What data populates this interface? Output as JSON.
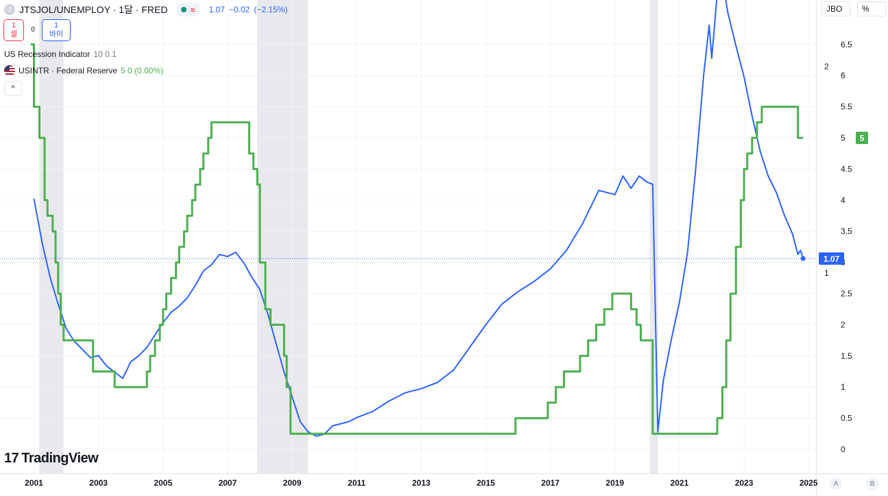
{
  "header": {
    "symbol_logo": "J",
    "title": "JTSJOL/UNEMPLOY · 1달 · FRED",
    "approx_symbol": "≈",
    "price": "1.07",
    "change": "−0.02",
    "change_pct": "(−2.15%)"
  },
  "trade": {
    "sell_price": "1",
    "sell_label": "셀",
    "spread": "0",
    "buy_price": "1",
    "buy_label": "바이"
  },
  "legend": {
    "recession_name": "US Recession Indicator",
    "recession_values": "10 0.1",
    "usintr_name": "USINTR · Federal Reserve",
    "usintr_values": "5  0 (0.00%)",
    "collapse_icon": "chevron-up-icon",
    "collapse_symbol": "^"
  },
  "scale_buttons": {
    "jbo": "JBO",
    "pct": "%"
  },
  "corner_buttons": {
    "a": "A",
    "b": "B"
  },
  "logo": {
    "mark": "17",
    "text": "TradingView"
  },
  "colors": {
    "ratio_line": "#2962ff",
    "rate_line": "#4caf50",
    "recession": "#e8e9ec",
    "grid": "#f0f3fa",
    "axis_text": "#131722"
  },
  "chart_data": {
    "type": "line",
    "title": "JTSJOL/UNEMPLOY · 1달 · FRED",
    "x_axis": {
      "ticks": [
        "2001",
        "2003",
        "2005",
        "2007",
        "2009",
        "2011",
        "2013",
        "2015",
        "2017",
        "2019",
        "2021",
        "2023",
        "2025"
      ],
      "range": [
        "2000-12-01",
        "2025-01-01"
      ]
    },
    "left_axis_ticks": [
      "1",
      "2"
    ],
    "right_axis": {
      "ticks": [
        "0",
        "0.5",
        "1",
        "1.5",
        "2",
        "2.5",
        "3",
        "3.5",
        "4",
        "4.5",
        "5",
        "5.5",
        "6",
        "6.5"
      ],
      "range": [
        -0.1,
        6.6
      ]
    },
    "grid": true,
    "last_value_badges": {
      "ratio": "1.07",
      "rate": "5"
    },
    "recessions": [
      [
        "2001-03-01",
        "2001-11-30"
      ],
      [
        "2007-12-01",
        "2009-06-30"
      ],
      [
        "2020-02-01",
        "2020-04-30"
      ]
    ],
    "series": [
      {
        "name": "JTSJOL/UNEMPLOY",
        "axis": "left",
        "points": [
          [
            2001.0,
            1.36
          ],
          [
            2001.25,
            1.15
          ],
          [
            2001.5,
            0.98
          ],
          [
            2001.75,
            0.85
          ],
          [
            2002.0,
            0.73
          ],
          [
            2002.25,
            0.67
          ],
          [
            2002.5,
            0.63
          ],
          [
            2002.75,
            0.59
          ],
          [
            2003.0,
            0.6
          ],
          [
            2003.25,
            0.55
          ],
          [
            2003.5,
            0.52
          ],
          [
            2003.75,
            0.49
          ],
          [
            2004.0,
            0.57
          ],
          [
            2004.25,
            0.6
          ],
          [
            2004.5,
            0.64
          ],
          [
            2004.75,
            0.7
          ],
          [
            2005.0,
            0.76
          ],
          [
            2005.25,
            0.81
          ],
          [
            2005.5,
            0.84
          ],
          [
            2005.75,
            0.88
          ],
          [
            2006.0,
            0.94
          ],
          [
            2006.25,
            1.01
          ],
          [
            2006.5,
            1.04
          ],
          [
            2006.75,
            1.09
          ],
          [
            2007.0,
            1.08
          ],
          [
            2007.25,
            1.1
          ],
          [
            2007.5,
            1.05
          ],
          [
            2007.75,
            0.98
          ],
          [
            2008.0,
            0.92
          ],
          [
            2008.25,
            0.8
          ],
          [
            2008.5,
            0.66
          ],
          [
            2008.75,
            0.52
          ],
          [
            2009.0,
            0.4
          ],
          [
            2009.25,
            0.28
          ],
          [
            2009.5,
            0.23
          ],
          [
            2009.75,
            0.21
          ],
          [
            2010.0,
            0.22
          ],
          [
            2010.25,
            0.26
          ],
          [
            2010.5,
            0.27
          ],
          [
            2010.75,
            0.28
          ],
          [
            2011.0,
            0.3
          ],
          [
            2011.5,
            0.33
          ],
          [
            2012.0,
            0.38
          ],
          [
            2012.5,
            0.42
          ],
          [
            2013.0,
            0.44
          ],
          [
            2013.5,
            0.47
          ],
          [
            2014.0,
            0.53
          ],
          [
            2014.5,
            0.64
          ],
          [
            2015.0,
            0.75
          ],
          [
            2015.5,
            0.85
          ],
          [
            2016.0,
            0.91
          ],
          [
            2016.5,
            0.96
          ],
          [
            2017.0,
            1.02
          ],
          [
            2017.5,
            1.11
          ],
          [
            2018.0,
            1.24
          ],
          [
            2018.5,
            1.4
          ],
          [
            2019.0,
            1.38
          ],
          [
            2019.25,
            1.47
          ],
          [
            2019.5,
            1.41
          ],
          [
            2019.75,
            1.47
          ],
          [
            2020.0,
            1.44
          ],
          [
            2020.17,
            1.43
          ],
          [
            2020.33,
            0.23
          ],
          [
            2020.5,
            0.48
          ],
          [
            2020.75,
            0.68
          ],
          [
            2021.0,
            0.86
          ],
          [
            2021.25,
            1.1
          ],
          [
            2021.5,
            1.5
          ],
          [
            2021.75,
            1.96
          ],
          [
            2021.92,
            2.2
          ],
          [
            2022.0,
            2.04
          ],
          [
            2022.25,
            2.5
          ],
          [
            2022.5,
            2.26
          ],
          [
            2022.75,
            2.1
          ],
          [
            2023.0,
            1.95
          ],
          [
            2023.25,
            1.76
          ],
          [
            2023.5,
            1.59
          ],
          [
            2023.75,
            1.47
          ],
          [
            2024.0,
            1.39
          ],
          [
            2024.25,
            1.28
          ],
          [
            2024.5,
            1.19
          ],
          [
            2024.67,
            1.09
          ],
          [
            2024.75,
            1.11
          ],
          [
            2024.83,
            1.07
          ]
        ]
      },
      {
        "name": "USINTR · Federal Reserve",
        "axis": "right",
        "points": [
          [
            2000.9,
            6.5
          ],
          [
            2001.0,
            5.5
          ],
          [
            2001.17,
            5.0
          ],
          [
            2001.33,
            4.0
          ],
          [
            2001.42,
            3.75
          ],
          [
            2001.58,
            3.5
          ],
          [
            2001.67,
            3.0
          ],
          [
            2001.75,
            2.5
          ],
          [
            2001.83,
            2.0
          ],
          [
            2001.92,
            1.75
          ],
          [
            2002.83,
            1.25
          ],
          [
            2003.5,
            1.0
          ],
          [
            2004.5,
            1.25
          ],
          [
            2004.6,
            1.5
          ],
          [
            2004.75,
            1.75
          ],
          [
            2004.9,
            2.0
          ],
          [
            2005.0,
            2.25
          ],
          [
            2005.1,
            2.5
          ],
          [
            2005.25,
            2.75
          ],
          [
            2005.4,
            3.0
          ],
          [
            2005.5,
            3.25
          ],
          [
            2005.65,
            3.5
          ],
          [
            2005.75,
            3.75
          ],
          [
            2005.9,
            4.0
          ],
          [
            2006.0,
            4.25
          ],
          [
            2006.15,
            4.5
          ],
          [
            2006.25,
            4.75
          ],
          [
            2006.4,
            5.0
          ],
          [
            2006.5,
            5.25
          ],
          [
            2007.67,
            4.75
          ],
          [
            2007.8,
            4.5
          ],
          [
            2007.92,
            4.25
          ],
          [
            2008.0,
            3.0
          ],
          [
            2008.17,
            2.25
          ],
          [
            2008.33,
            2.0
          ],
          [
            2008.75,
            1.5
          ],
          [
            2008.83,
            1.0
          ],
          [
            2008.95,
            0.25
          ],
          [
            2015.92,
            0.5
          ],
          [
            2016.92,
            0.75
          ],
          [
            2017.17,
            1.0
          ],
          [
            2017.42,
            1.25
          ],
          [
            2017.92,
            1.5
          ],
          [
            2018.17,
            1.75
          ],
          [
            2018.42,
            2.0
          ],
          [
            2018.67,
            2.25
          ],
          [
            2018.92,
            2.5
          ],
          [
            2019.5,
            2.25
          ],
          [
            2019.67,
            2.0
          ],
          [
            2019.8,
            1.75
          ],
          [
            2020.17,
            0.25
          ],
          [
            2022.17,
            0.5
          ],
          [
            2022.33,
            1.0
          ],
          [
            2022.45,
            1.75
          ],
          [
            2022.58,
            2.5
          ],
          [
            2022.75,
            3.25
          ],
          [
            2022.9,
            4.0
          ],
          [
            2023.0,
            4.5
          ],
          [
            2023.1,
            4.75
          ],
          [
            2023.25,
            5.0
          ],
          [
            2023.4,
            5.25
          ],
          [
            2023.55,
            5.5
          ],
          [
            2024.67,
            5.0
          ],
          [
            2024.83,
            5.0
          ]
        ]
      }
    ]
  }
}
